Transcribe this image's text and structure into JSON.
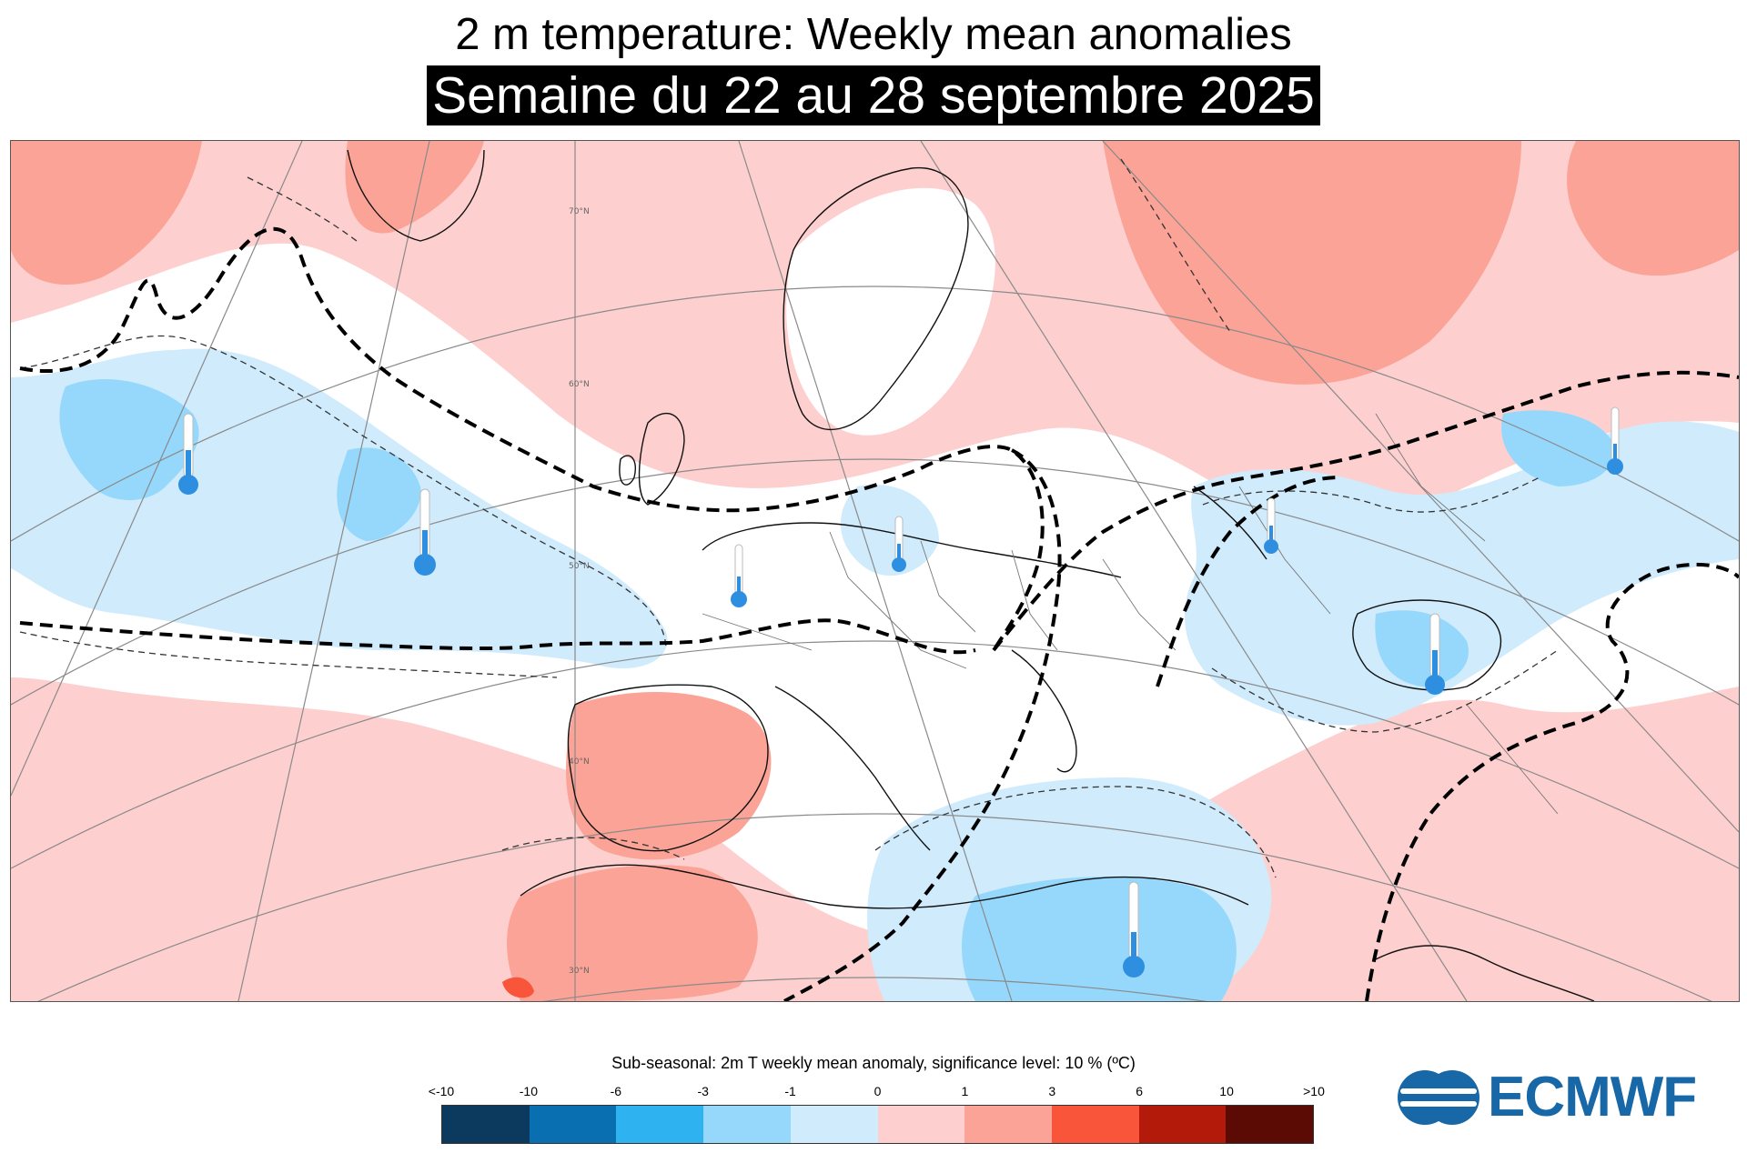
{
  "header": {
    "title": "2 m temperature: Weekly mean anomalies",
    "subtitle": "Semaine du 22 au 28 septembre 2025"
  },
  "map": {
    "latitude_labels": [
      "70°N",
      "60°N",
      "50°N",
      "40°N",
      "30°N"
    ],
    "icons": [
      "thermometer-cold-icon"
    ]
  },
  "legend": {
    "title": "Sub-seasonal: 2m T weekly mean anomaly, significance level: 10 % (ºC)",
    "ticks": [
      "<-10",
      "-10",
      "-6",
      "-3",
      "-1",
      "0",
      "1",
      "3",
      "6",
      "10",
      ">10"
    ],
    "colors": [
      "#0b3a5e",
      "#0a6fb0",
      "#2eb3f0",
      "#95d8fb",
      "#cfebfc",
      "#fdd0cf",
      "#fba397",
      "#f8553a",
      "#b41a0a",
      "#5c0a04"
    ]
  },
  "logo": {
    "text": "ECMWF",
    "color": "#1867a7"
  }
}
